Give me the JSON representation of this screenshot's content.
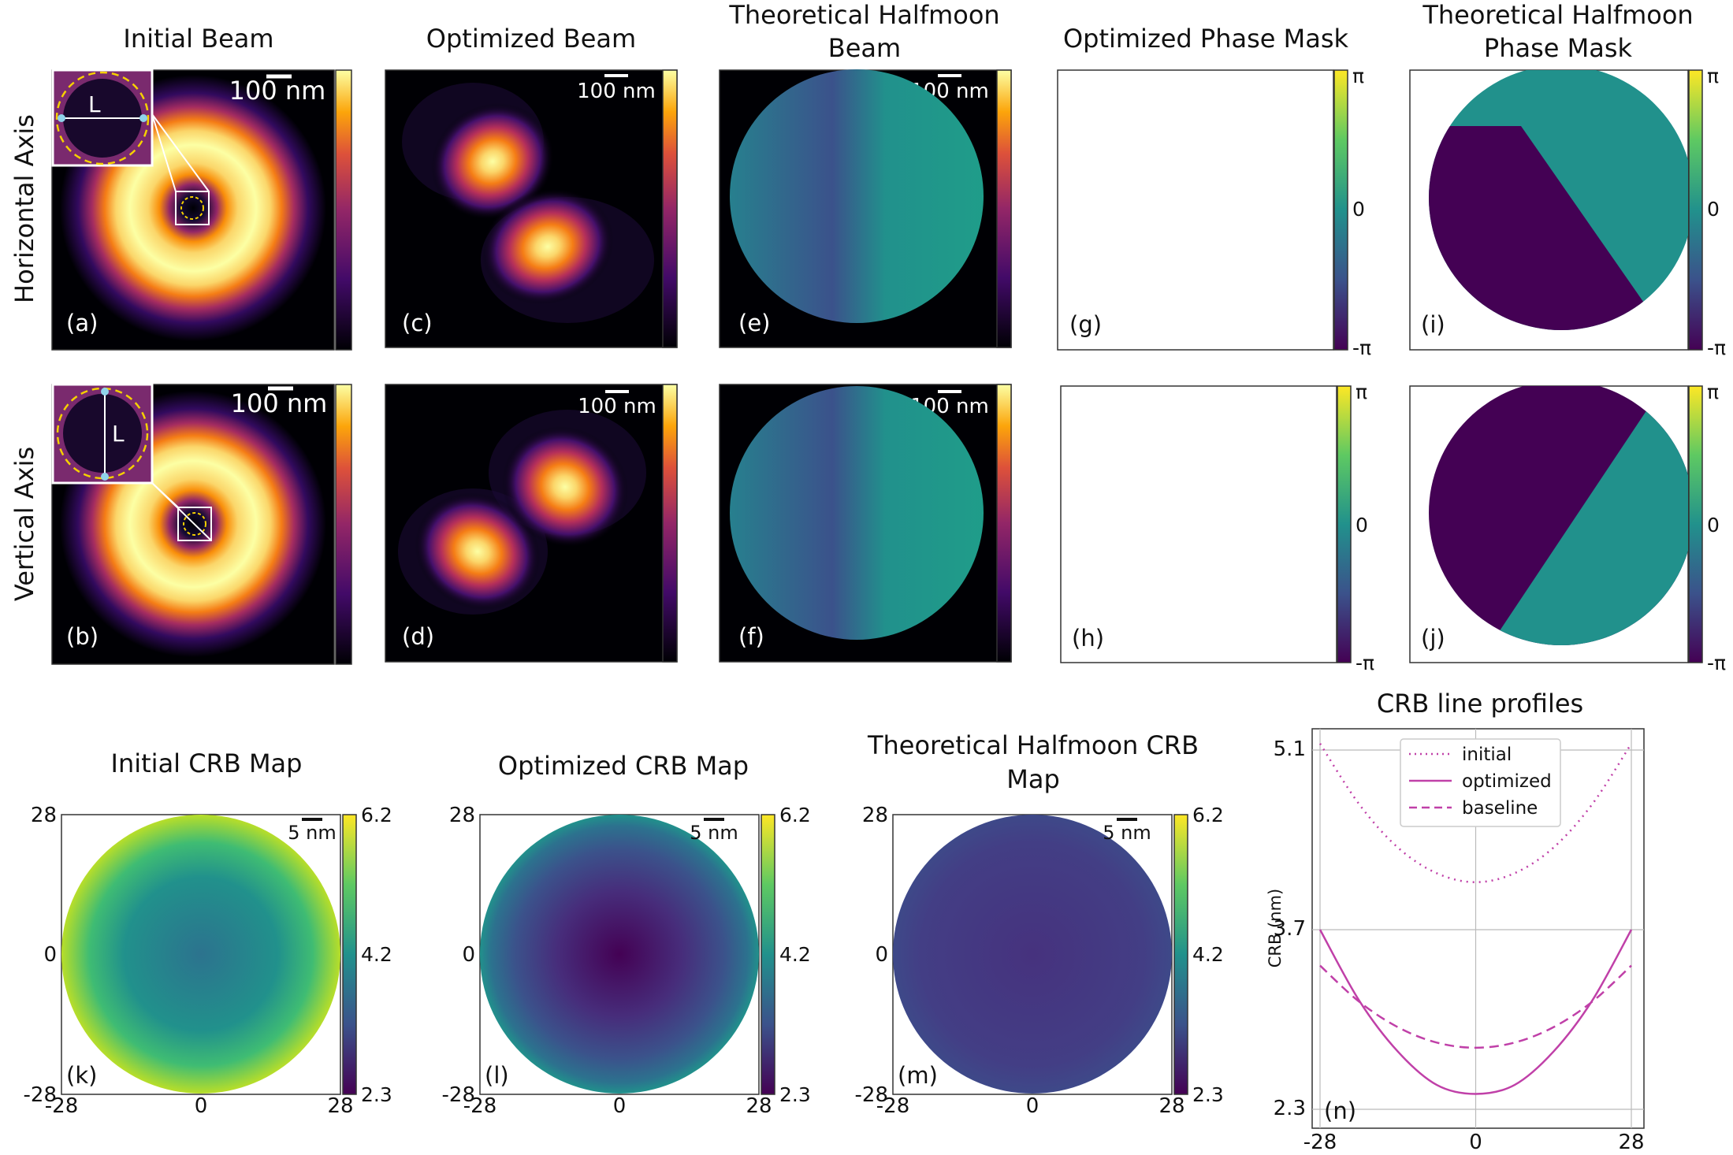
{
  "figure": {
    "row_labels": [
      "Horizontal Axis",
      "Vertical Axis"
    ],
    "column_titles": {
      "initial_beam": "Initial Beam",
      "optimized_beam": "Optimized Beam",
      "halfmoon_beam_l1": "Theoretical Halfmoon",
      "halfmoon_beam_l2": "Beam",
      "optimized_phase": "Optimized Phase Mask",
      "halfmoon_phase_l1": "Theoretical Halfmoon",
      "halfmoon_phase_l2": "Phase Mask"
    },
    "scale_bar_beam": "100 nm",
    "scale_bar_crb": "5 nm",
    "inset_label": "L",
    "phase_ticks": {
      "top": "π",
      "mid": "0",
      "bottom": "-π"
    },
    "panel_labels": {
      "a": "(a)",
      "b": "(b)",
      "c": "(c)",
      "d": "(d)",
      "e": "(e)",
      "f": "(f)",
      "g": "(g)",
      "h": "(h)",
      "i": "(i)",
      "j": "(j)",
      "k": "(k)",
      "l": "(l)",
      "m": "(m)",
      "n": "(n)"
    },
    "crb_maps": {
      "title_initial": "Initial CRB Map",
      "title_optimized": "Optimized CRB Map",
      "title_halfmoon_l1": "Theoretical Halfmoon CRB",
      "title_halfmoon_l2": "Map",
      "axis_ticks": [
        "28",
        "0",
        "-28"
      ],
      "x_ticks": [
        "-28",
        "0",
        "28"
      ],
      "colorbar_ticks": [
        "6.2",
        "4.2",
        "2.3"
      ]
    },
    "colors": {
      "viridis_dark": "#440154",
      "viridis_teal": "#21918c",
      "viridis_yellow": "#fde725",
      "profile_magenta": "#c040a8"
    }
  },
  "chart_data": {
    "type": "line",
    "title": "CRB line profiles",
    "xlabel": "",
    "ylabel": "CRB (nm)",
    "xlim": [
      -28,
      28
    ],
    "ylim": [
      2.3,
      5.1
    ],
    "x_ticks": [
      "-28",
      "0",
      "28"
    ],
    "y_ticks": [
      "5.1",
      "3.7",
      "2.3"
    ],
    "legend_position": "top-center",
    "x": [
      -28,
      -21,
      -14,
      -7,
      0,
      7,
      14,
      21,
      28
    ],
    "series": [
      {
        "name": "initial",
        "style": "dotted",
        "values": [
          5.15,
          4.68,
          4.34,
          4.14,
          4.07,
          4.14,
          4.34,
          4.68,
          5.15
        ]
      },
      {
        "name": "optimized",
        "style": "solid",
        "values": [
          3.7,
          3.15,
          2.75,
          2.49,
          2.42,
          2.49,
          2.75,
          3.15,
          3.7
        ]
      },
      {
        "name": "baseline",
        "style": "dashed",
        "values": [
          3.42,
          3.14,
          2.94,
          2.82,
          2.78,
          2.82,
          2.94,
          3.14,
          3.42
        ]
      }
    ]
  }
}
